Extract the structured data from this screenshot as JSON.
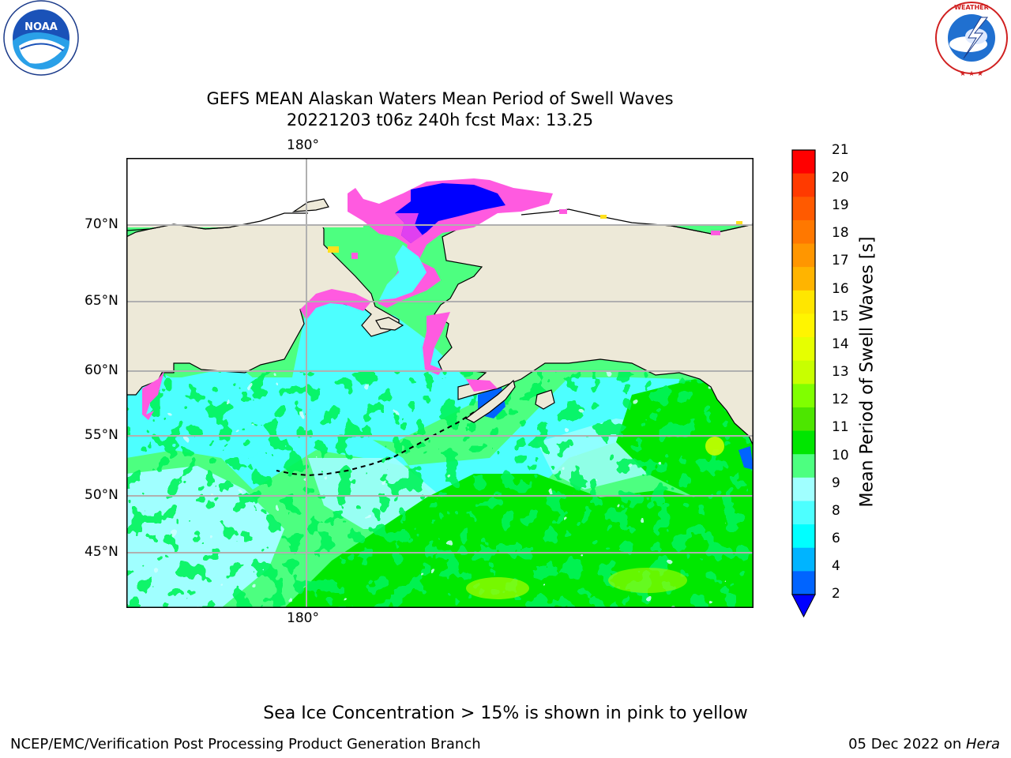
{
  "header": {
    "title_line1": "GEFS MEAN Alaskan Waters Mean Period of Swell Waves",
    "title_line2": "20221203 t06z 240h fcst   Max: 13.25"
  },
  "logos": {
    "left": {
      "name": "noaa-logo",
      "text": "NOAA",
      "ring_text": "NATIONAL OCEANIC AND ATMOSPHERIC ADMINISTRATION · U.S. DEPARTMENT OF COMMERCE"
    },
    "right": {
      "name": "nws-logo",
      "ring_text": "NATIONAL WEATHER SERVICE"
    }
  },
  "map": {
    "lon_labels": [
      "180°",
      "180°"
    ],
    "lat_labels": [
      "70°N",
      "65°N",
      "60°N",
      "55°N",
      "50°N",
      "45°N"
    ],
    "colors": {
      "land": "#ede9d8",
      "ice_pink": "#ff5ae0",
      "ice_magenta": "#e040f0",
      "ice_yellow": "#ffe01c",
      "deep_blue": "#0000ff",
      "cyan": "#4dffff",
      "light_cyan": "#a0ffff",
      "green_light": "#4dff80",
      "green": "#00e800",
      "green_yellow": "#a8ff00",
      "grid": "#b0b0b0"
    }
  },
  "colorbar": {
    "label": "Mean Period of Swell Waves [s]",
    "ticks": [
      "21",
      "20",
      "19",
      "18",
      "17",
      "16",
      "15",
      "14",
      "13",
      "12",
      "11",
      "10",
      "9",
      "8",
      "6",
      "4",
      "2"
    ],
    "colors": [
      "#ff0000",
      "#ff3a00",
      "#ff5a00",
      "#ff7800",
      "#ff9600",
      "#ffb400",
      "#ffe600",
      "#fff500",
      "#e6ff00",
      "#c8ff00",
      "#80ff00",
      "#4de600",
      "#00e600",
      "#4dff80",
      "#a0ffff",
      "#4dffff",
      "#00ffff",
      "#00b4ff",
      "#0064ff"
    ],
    "extend_color": "#0000ff"
  },
  "chart_data": {
    "type": "heatmap",
    "title": "GEFS MEAN Alaskan Waters Mean Period of Swell Waves",
    "subtitle": "20221203 t06z 240h fcst   Max: 13.25",
    "max": 13.25,
    "colorbar_label": "Mean Period of Swell Waves [s]",
    "levels": [
      2,
      4,
      6,
      8,
      9,
      10,
      11,
      12,
      13,
      14,
      15,
      16,
      17,
      18,
      19,
      20,
      21
    ],
    "lat_ticks": [
      "70°N",
      "65°N",
      "60°N",
      "55°N",
      "50°N",
      "45°N"
    ],
    "lon_ticks": [
      "180°"
    ]
  },
  "notes": {
    "sea_ice": "Sea Ice Concentration > 15% is shown in pink to yellow"
  },
  "footer": {
    "left": "NCEP/EMC/Verification Post Processing Product Generation Branch",
    "date": "05 Dec 2022 on ",
    "machine": "Hera"
  }
}
